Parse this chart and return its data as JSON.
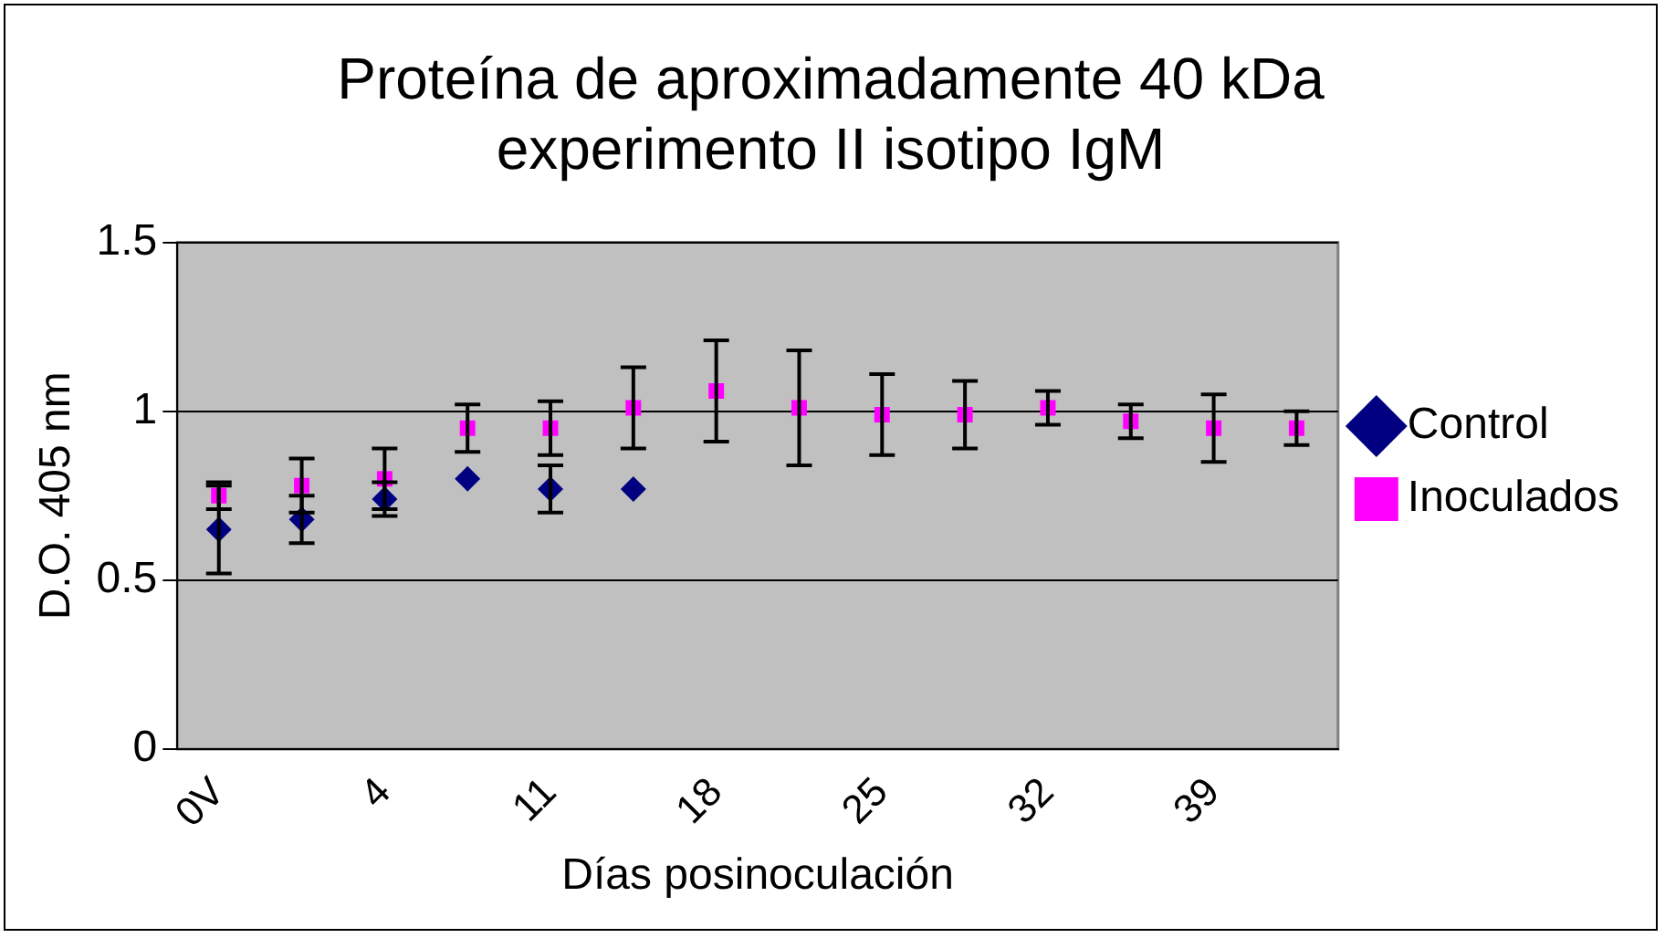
{
  "chart_data": {
    "type": "scatter",
    "title": "Proteína de aproximadamente 40 kDa experimento II isotipo IgM",
    "xlabel": "Días posinoculación",
    "ylabel": "D.O. 405 nm",
    "categories": [
      "0V",
      null,
      "4",
      null,
      "11",
      null,
      "18",
      null,
      "25",
      null,
      "32",
      null,
      "39",
      null
    ],
    "series": [
      {
        "name": "Control",
        "color": "#000080",
        "marker": "diamond",
        "values": [
          0.65,
          0.68,
          0.74,
          0.8,
          0.77,
          0.77,
          null,
          null,
          null,
          null,
          null,
          null,
          null,
          null
        ],
        "errors": [
          0.13,
          0.07,
          0.05,
          null,
          0.07,
          null,
          null,
          null,
          null,
          null,
          null,
          null,
          null,
          null
        ]
      },
      {
        "name": "Inoculados",
        "color": "#ff00ff",
        "marker": "square",
        "values": [
          0.75,
          0.78,
          0.8,
          0.95,
          0.95,
          1.01,
          1.06,
          1.01,
          0.99,
          0.99,
          1.01,
          0.97,
          0.95,
          0.95
        ],
        "errors": [
          0.04,
          0.08,
          0.09,
          0.07,
          0.08,
          0.12,
          0.15,
          0.17,
          0.12,
          0.1,
          0.05,
          0.05,
          0.1,
          0.05
        ]
      }
    ],
    "ylim": [
      0,
      1.5
    ],
    "yticks": [
      0,
      0.5,
      1,
      1.5
    ],
    "grid": "y",
    "legend": "right"
  }
}
